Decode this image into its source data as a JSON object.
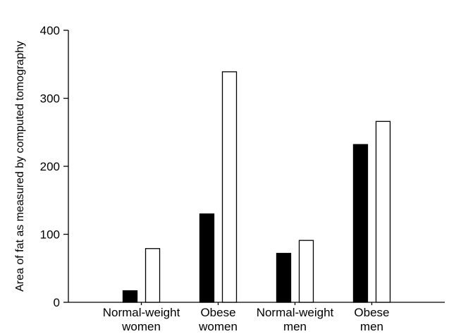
{
  "chart_data": {
    "type": "bar",
    "categories": [
      [
        "Normal-weight",
        "women"
      ],
      [
        "Obese",
        "women"
      ],
      [
        "Normal-weight",
        "men"
      ],
      [
        "Obese",
        "men"
      ]
    ],
    "series": [
      {
        "fill": "#000000",
        "values": [
          17,
          130,
          72,
          232
        ]
      },
      {
        "fill": "#ffffff",
        "values": [
          79,
          339,
          91,
          266
        ]
      }
    ],
    "title": "",
    "xlabel": "",
    "ylabel": "Area of fat as measured by computed tomography",
    "ylim": [
      0,
      400
    ],
    "yticks": [
      0,
      100,
      200,
      300,
      400
    ],
    "grid": false,
    "legend": "none"
  }
}
